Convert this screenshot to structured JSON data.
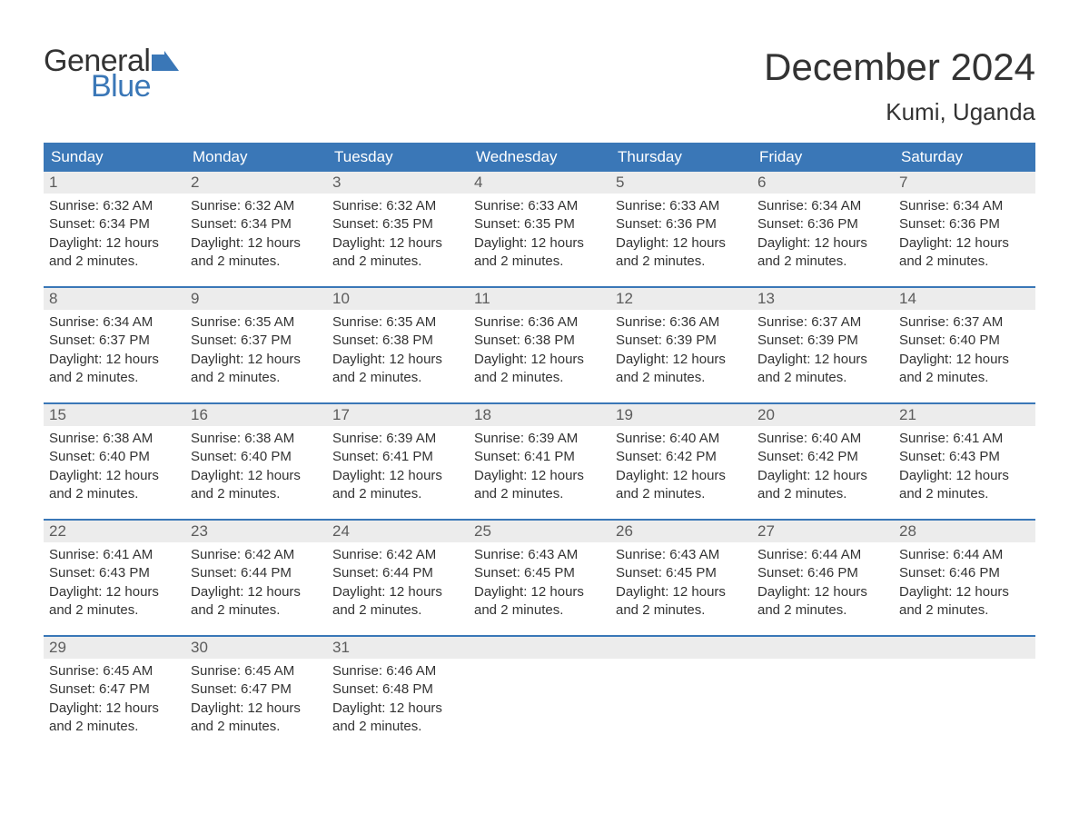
{
  "logo": {
    "text_general": "General",
    "text_blue": "Blue",
    "flag_color": "#3a77b7"
  },
  "title": "December 2024",
  "location": "Kumi, Uganda",
  "colors": {
    "header_bg": "#3a77b7",
    "daynum_bg": "#ececec",
    "text": "#333333",
    "muted": "#5c5c5c",
    "border": "#3a77b7"
  },
  "fonts": {
    "title_size": 42,
    "location_size": 26,
    "weekday_size": 17,
    "daynum_size": 17,
    "body_size": 15
  },
  "weekdays": [
    "Sunday",
    "Monday",
    "Tuesday",
    "Wednesday",
    "Thursday",
    "Friday",
    "Saturday"
  ],
  "labels": {
    "sunrise": "Sunrise:",
    "sunset": "Sunset:",
    "daylight": "Daylight:",
    "daylight_value": "12 hours and 2 minutes."
  },
  "weeks": [
    [
      {
        "n": "1",
        "sunrise": "6:32 AM",
        "sunset": "6:34 PM"
      },
      {
        "n": "2",
        "sunrise": "6:32 AM",
        "sunset": "6:34 PM"
      },
      {
        "n": "3",
        "sunrise": "6:32 AM",
        "sunset": "6:35 PM"
      },
      {
        "n": "4",
        "sunrise": "6:33 AM",
        "sunset": "6:35 PM"
      },
      {
        "n": "5",
        "sunrise": "6:33 AM",
        "sunset": "6:36 PM"
      },
      {
        "n": "6",
        "sunrise": "6:34 AM",
        "sunset": "6:36 PM"
      },
      {
        "n": "7",
        "sunrise": "6:34 AM",
        "sunset": "6:36 PM"
      }
    ],
    [
      {
        "n": "8",
        "sunrise": "6:34 AM",
        "sunset": "6:37 PM"
      },
      {
        "n": "9",
        "sunrise": "6:35 AM",
        "sunset": "6:37 PM"
      },
      {
        "n": "10",
        "sunrise": "6:35 AM",
        "sunset": "6:38 PM"
      },
      {
        "n": "11",
        "sunrise": "6:36 AM",
        "sunset": "6:38 PM"
      },
      {
        "n": "12",
        "sunrise": "6:36 AM",
        "sunset": "6:39 PM"
      },
      {
        "n": "13",
        "sunrise": "6:37 AM",
        "sunset": "6:39 PM"
      },
      {
        "n": "14",
        "sunrise": "6:37 AM",
        "sunset": "6:40 PM"
      }
    ],
    [
      {
        "n": "15",
        "sunrise": "6:38 AM",
        "sunset": "6:40 PM"
      },
      {
        "n": "16",
        "sunrise": "6:38 AM",
        "sunset": "6:40 PM"
      },
      {
        "n": "17",
        "sunrise": "6:39 AM",
        "sunset": "6:41 PM"
      },
      {
        "n": "18",
        "sunrise": "6:39 AM",
        "sunset": "6:41 PM"
      },
      {
        "n": "19",
        "sunrise": "6:40 AM",
        "sunset": "6:42 PM"
      },
      {
        "n": "20",
        "sunrise": "6:40 AM",
        "sunset": "6:42 PM"
      },
      {
        "n": "21",
        "sunrise": "6:41 AM",
        "sunset": "6:43 PM"
      }
    ],
    [
      {
        "n": "22",
        "sunrise": "6:41 AM",
        "sunset": "6:43 PM"
      },
      {
        "n": "23",
        "sunrise": "6:42 AM",
        "sunset": "6:44 PM"
      },
      {
        "n": "24",
        "sunrise": "6:42 AM",
        "sunset": "6:44 PM"
      },
      {
        "n": "25",
        "sunrise": "6:43 AM",
        "sunset": "6:45 PM"
      },
      {
        "n": "26",
        "sunrise": "6:43 AM",
        "sunset": "6:45 PM"
      },
      {
        "n": "27",
        "sunrise": "6:44 AM",
        "sunset": "6:46 PM"
      },
      {
        "n": "28",
        "sunrise": "6:44 AM",
        "sunset": "6:46 PM"
      }
    ],
    [
      {
        "n": "29",
        "sunrise": "6:45 AM",
        "sunset": "6:47 PM"
      },
      {
        "n": "30",
        "sunrise": "6:45 AM",
        "sunset": "6:47 PM"
      },
      {
        "n": "31",
        "sunrise": "6:46 AM",
        "sunset": "6:48 PM"
      },
      null,
      null,
      null,
      null
    ]
  ]
}
